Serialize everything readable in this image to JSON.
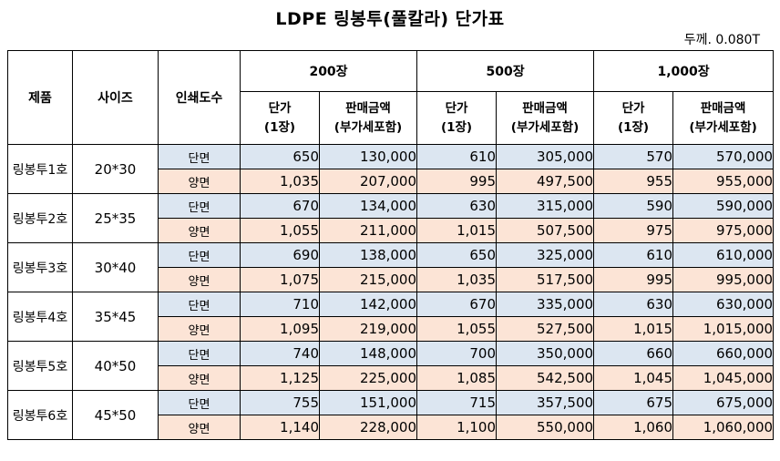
{
  "title": "LDPE 링봉투(풀칼라) 단가표",
  "thickness": "두께. 0.080T",
  "headers": {
    "product": "제품",
    "size": "사이즈",
    "print": "인쇄도수",
    "qty": [
      "200장",
      "500장",
      "1,000장"
    ],
    "unit_price": [
      "단가",
      "(1장)"
    ],
    "sale_amount": [
      "판매금액",
      "(부가세포함)"
    ]
  },
  "rows": [
    {
      "name": "링봉투1호",
      "size": "20*30",
      "lines": [
        {
          "side": "단면",
          "v": [
            "650",
            "130,000",
            "610",
            "305,000",
            "570",
            "570,000"
          ]
        },
        {
          "side": "양면",
          "v": [
            "1,035",
            "207,000",
            "995",
            "497,500",
            "955",
            "955,000"
          ]
        }
      ]
    },
    {
      "name": "링봉투2호",
      "size": "25*35",
      "lines": [
        {
          "side": "단면",
          "v": [
            "670",
            "134,000",
            "630",
            "315,000",
            "590",
            "590,000"
          ]
        },
        {
          "side": "양면",
          "v": [
            "1,055",
            "211,000",
            "1,015",
            "507,500",
            "975",
            "975,000"
          ]
        }
      ]
    },
    {
      "name": "링봉투3호",
      "size": "30*40",
      "lines": [
        {
          "side": "단면",
          "v": [
            "690",
            "138,000",
            "650",
            "325,000",
            "610",
            "610,000"
          ]
        },
        {
          "side": "양면",
          "v": [
            "1,075",
            "215,000",
            "1,035",
            "517,500",
            "995",
            "995,000"
          ]
        }
      ]
    },
    {
      "name": "링봉투4호",
      "size": "35*45",
      "lines": [
        {
          "side": "단면",
          "v": [
            "710",
            "142,000",
            "670",
            "335,000",
            "630",
            "630,000"
          ]
        },
        {
          "side": "양면",
          "v": [
            "1,095",
            "219,000",
            "1,055",
            "527,500",
            "1,015",
            "1,015,000"
          ]
        }
      ]
    },
    {
      "name": "링봉투5호",
      "size": "40*50",
      "lines": [
        {
          "side": "단면",
          "v": [
            "740",
            "148,000",
            "700",
            "350,000",
            "660",
            "660,000"
          ]
        },
        {
          "side": "양면",
          "v": [
            "1,125",
            "225,000",
            "1,085",
            "542,500",
            "1,045",
            "1,045,000"
          ]
        }
      ]
    },
    {
      "name": "링봉투6호",
      "size": "45*50",
      "lines": [
        {
          "side": "단면",
          "v": [
            "755",
            "151,000",
            "715",
            "357,500",
            "675",
            "675,000"
          ]
        },
        {
          "side": "양면",
          "v": [
            "1,140",
            "228,000",
            "1,100",
            "550,000",
            "1,060",
            "1,060,000"
          ]
        }
      ]
    }
  ]
}
